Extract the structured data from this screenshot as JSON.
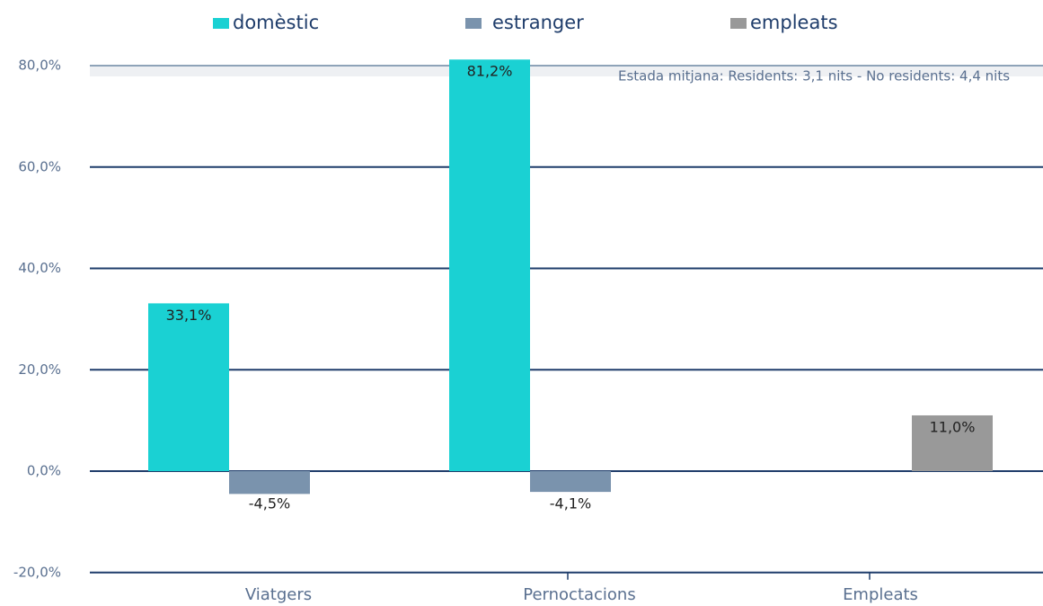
{
  "chart_data": {
    "type": "bar",
    "categories": [
      "Viatgers",
      "Pernoctacions",
      "Empleats"
    ],
    "series": [
      {
        "name": "domèstic",
        "color": "#1ad1d3",
        "values": [
          33.1,
          81.2,
          null
        ],
        "value_labels": [
          "33,1%",
          "81,2%",
          null
        ]
      },
      {
        "name": "estranger",
        "color": "#7a93ad",
        "values": [
          -4.5,
          -4.1,
          null
        ],
        "value_labels": [
          "-4,5%",
          "-4,1%",
          null
        ]
      },
      {
        "name": "empleats",
        "color": "#999999",
        "values": [
          null,
          null,
          11.0
        ],
        "value_labels": [
          null,
          null,
          "11,0%"
        ]
      }
    ],
    "ylim": [
      -20,
      80
    ],
    "yticks": [
      {
        "value": -20,
        "label": "-20,0%"
      },
      {
        "value": 0,
        "label": "0,0%"
      },
      {
        "value": 20,
        "label": "20,0%"
      },
      {
        "value": 40,
        "label": "40,0%"
      },
      {
        "value": 60,
        "label": "60,0%"
      },
      {
        "value": 80,
        "label": "80,0%"
      }
    ],
    "grid": true,
    "legend": "top",
    "annotation": "Estada mitjana: Residents: 3,1 nits - No residents: 4,4 nits"
  }
}
